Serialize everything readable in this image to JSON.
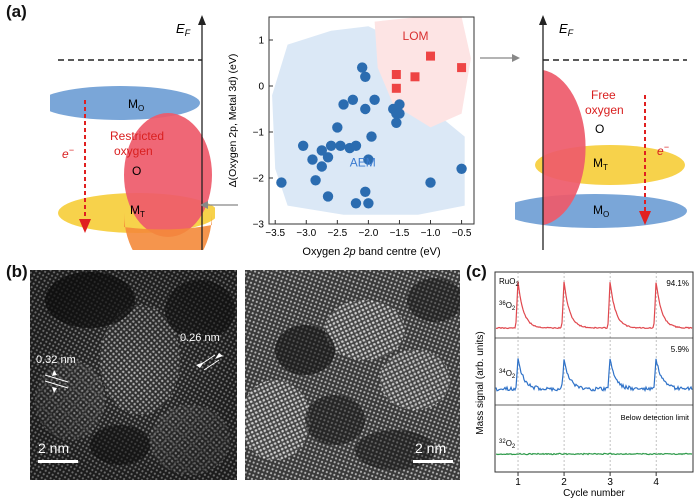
{
  "panels": {
    "a": "(a)",
    "b": "(b)",
    "c": "(c)"
  },
  "panel_a": {
    "left_diagram": {
      "ef_label": "E",
      "ef_sub": "F",
      "mo_label": "M",
      "mo_sub": "O",
      "o_label": "O",
      "mt_label": "M",
      "mt_sub": "T",
      "electron_label": "e",
      "electron_sup": "−",
      "restricted_line1": "Restricted",
      "restricted_line2": "oxygen"
    },
    "right_diagram": {
      "ef_label": "E",
      "ef_sub": "F",
      "free_line1": "Free",
      "free_line2": "oxygen",
      "o_label": "O",
      "mt_label": "M",
      "mt_sub": "T",
      "mo_label": "M",
      "mo_sub": "O",
      "electron_label": "e",
      "electron_sup": "−"
    },
    "colors": {
      "blue_band": "#7aa6d8",
      "red_band": "#ee5a6a",
      "yellow_band": "#f7d24b",
      "orange_overlap": "#f48a3a",
      "arrow_red": "#e02020",
      "label_red": "#d92020"
    }
  },
  "scatter": {
    "region_labels": {
      "lom": "LOM",
      "aem": "AEM"
    },
    "xlabel_pre": "Oxygen ",
    "xlabel_it": "2p",
    "xlabel_post": " band centre (eV)",
    "ylabel": "Δ(Oxygen 2p, Metal 3d) (eV)",
    "colors": {
      "aem_marker": "#2b6cb0",
      "lom_marker": "#ee4444",
      "aem_region": "#dbe8f6",
      "lom_region": "#fde4e4"
    }
  },
  "chart_data": [
    {
      "type": "scatter",
      "title": "",
      "xlabel": "Oxygen 2p band centre (eV)",
      "ylabel": "Δ(Oxygen 2p, Metal 3d) (eV)",
      "xlim": [
        -3.6,
        -0.3
      ],
      "ylim": [
        -3,
        1.5
      ],
      "xticks": [
        -3.5,
        -3.0,
        -2.5,
        -2.0,
        -1.5,
        -1.0,
        -0.5
      ],
      "yticks": [
        -3,
        -2,
        -1,
        0,
        1
      ],
      "xtick_labels": [
        "−3.5",
        "−3.0",
        "−2.5",
        "−2.0",
        "−1.5",
        "−1.0",
        "−0.5"
      ],
      "ytick_labels": [
        "−3",
        "−2",
        "−1",
        "0",
        "1"
      ],
      "grid": false,
      "series": [
        {
          "name": "AEM",
          "marker": "circle",
          "x": [
            -3.4,
            -3.05,
            -2.9,
            -2.85,
            -2.75,
            -2.75,
            -2.65,
            -2.6,
            -2.5,
            -2.45,
            -2.4,
            -2.3,
            -2.25,
            -2.2,
            -2.2,
            -2.1,
            -2.05,
            -2.05,
            -2.05,
            -2.0,
            -2.0,
            -1.95,
            -1.9,
            -1.6,
            -1.55,
            -1.55,
            -1.5,
            -1.5,
            -1.0,
            -0.5,
            -2.65
          ],
          "y": [
            -2.1,
            -1.3,
            -1.6,
            -2.05,
            -1.75,
            -1.4,
            -1.55,
            -1.3,
            -0.9,
            -1.3,
            -0.4,
            -1.35,
            -0.3,
            -2.55,
            -1.3,
            0.4,
            0.2,
            -0.5,
            -2.3,
            -2.55,
            -1.6,
            -1.1,
            -0.3,
            -0.5,
            -0.8,
            -0.6,
            -0.4,
            -0.6,
            -2.1,
            -1.8,
            -2.4
          ]
        },
        {
          "name": "LOM",
          "marker": "square",
          "x": [
            -1.55,
            -1.55,
            -1.25,
            -1.0,
            -0.5
          ],
          "y": [
            0.25,
            -0.05,
            0.2,
            0.65,
            0.4
          ]
        }
      ]
    },
    {
      "type": "line",
      "title": "",
      "xlabel": "Cycle number",
      "ylabel": "Mass signal (arb. units)",
      "x_ticks": [
        1,
        2,
        3,
        4
      ],
      "xlim": [
        0.5,
        4.8
      ],
      "series": [
        {
          "name": "RuO2 36O2",
          "color": "#e0484e",
          "peaks_at": [
            1,
            2,
            3,
            4
          ],
          "percent": "94.1%"
        },
        {
          "name": "34O2",
          "color": "#2f72c8",
          "peaks_at": [
            1,
            2,
            3,
            4
          ],
          "percent": "5.9%"
        },
        {
          "name": "32O2",
          "color": "#2e9a4a",
          "peaks_at": [],
          "note": "Below detection limit"
        }
      ]
    }
  ],
  "panel_b": {
    "left_annotations": {
      "d1": "0.32 nm",
      "d2": "0.26 nm"
    },
    "scale_left": "2 nm",
    "scale_right": "2 nm"
  },
  "panel_c": {
    "top_label": "RuO",
    "top_label_sub": "2",
    "iso36": "36",
    "iso36_el": "O",
    "iso36_sub": "2",
    "iso34": "34",
    "iso34_el": "O",
    "iso34_sub": "2",
    "iso32": "32",
    "iso32_el": "O",
    "iso32_sub": "2",
    "pct1": "94.1%",
    "pct2": "5.9%",
    "below": "Below detection limit",
    "ylabel": "Mass signal (arb. units)",
    "xlabel": "Cycle number",
    "xticks": [
      "1",
      "2",
      "3",
      "4"
    ]
  }
}
